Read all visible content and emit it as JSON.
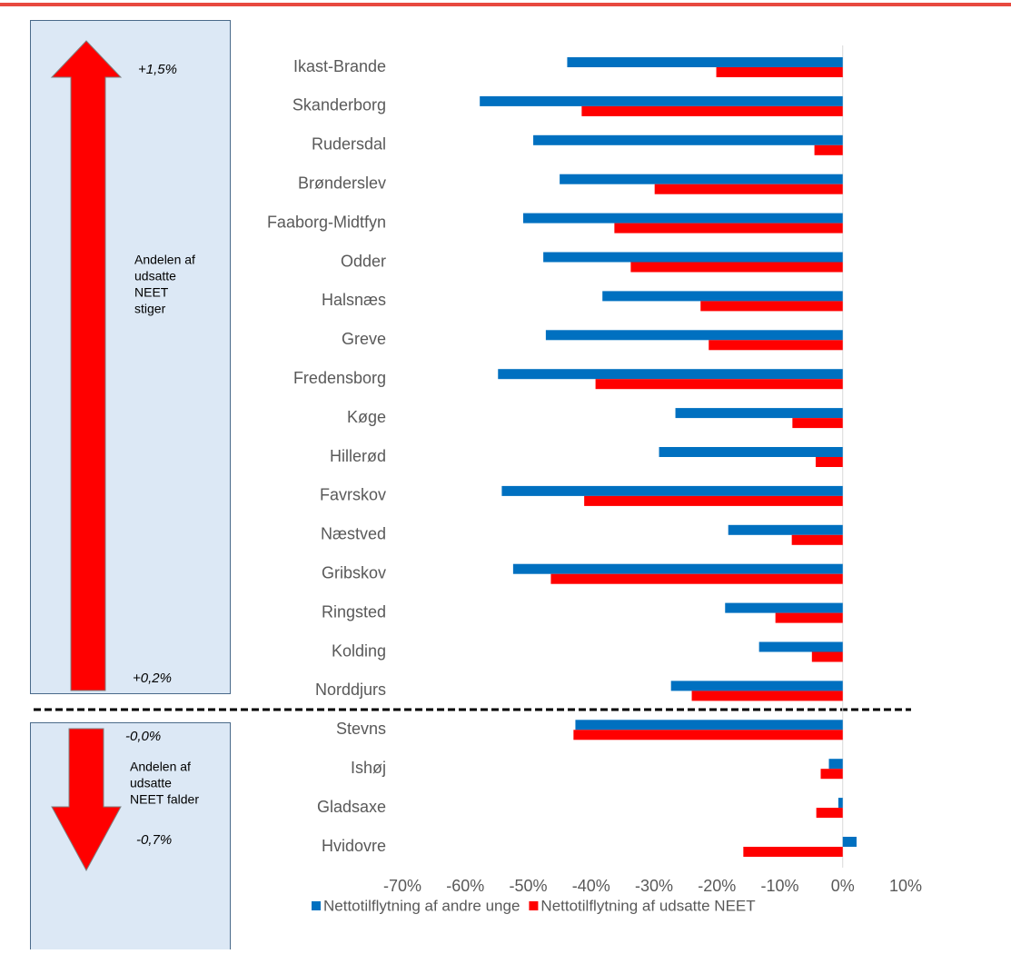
{
  "chart_data": {
    "type": "bar",
    "orientation": "horizontal",
    "categories": [
      "Ikast-Brande",
      "Skanderborg",
      "Rudersdal",
      "Brønderslev",
      "Faaborg-Midtfyn",
      "Odder",
      "Halsnæs",
      "Greve",
      "Fredensborg",
      "Køge",
      "Hillerød",
      "Favrskov",
      "Næstved",
      "Gribskov",
      "Ringsted",
      "Kolding",
      "Norddjurs",
      "Stevns",
      "Ishøj",
      "Gladsaxe",
      "Hvidovre"
    ],
    "series": [
      {
        "name": "Nettotilflytning af andre unge",
        "color": "#0070c0",
        "values": [
          -43.8,
          -57.7,
          -49.2,
          -45.0,
          -50.8,
          -47.6,
          -38.2,
          -47.2,
          -54.8,
          -26.6,
          -29.2,
          -54.2,
          -18.2,
          -52.4,
          -18.7,
          -13.3,
          -27.3,
          -42.5,
          -2.2,
          -0.7,
          2.2
        ]
      },
      {
        "name": "Nettotilflytning af udsatte NEET",
        "color": "#ff0000",
        "values": [
          -20.1,
          -41.5,
          -4.5,
          -29.9,
          -36.3,
          -33.7,
          -22.6,
          -21.3,
          -39.3,
          -8.0,
          -4.3,
          -41.1,
          -8.1,
          -46.4,
          -10.7,
          -4.9,
          -24.0,
          -42.8,
          -3.5,
          -4.2,
          -15.8
        ]
      }
    ],
    "xlim": [
      -70,
      10
    ],
    "xticks": [
      {
        "value": -70,
        "label": "-70%"
      },
      {
        "value": -60,
        "label": "-60%"
      },
      {
        "value": -50,
        "label": "-50%"
      },
      {
        "value": -40,
        "label": "-40%"
      },
      {
        "value": -30,
        "label": "-30%"
      },
      {
        "value": -20,
        "label": "-20%"
      },
      {
        "value": -10,
        "label": "-10%"
      },
      {
        "value": 0,
        "label": "0%"
      },
      {
        "value": 10,
        "label": "10%"
      }
    ],
    "upper_panel": {
      "top_label": "+1,5%",
      "bottom_label": "+0,2%",
      "text_lines": [
        "Andelen af",
        "udsatte",
        "NEET",
        "stiger"
      ]
    },
    "lower_panel": {
      "top_label": "-0,0%",
      "bottom_label": "-0,7%",
      "text_lines": [
        "Andelen af",
        "udsatte",
        "NEET falder"
      ]
    }
  }
}
